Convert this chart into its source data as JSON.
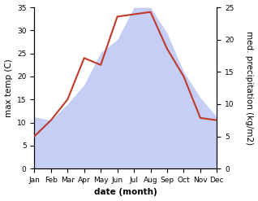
{
  "months": [
    "Jan",
    "Feb",
    "Mar",
    "Apr",
    "May",
    "Jun",
    "Jul",
    "Aug",
    "Sep",
    "Oct",
    "Nov",
    "Dec"
  ],
  "max_temp": [
    7,
    10.5,
    15,
    24,
    22.5,
    33,
    33.5,
    34,
    26,
    20,
    11,
    10.5
  ],
  "precipitation": [
    8,
    7.5,
    10,
    13,
    18,
    20,
    25,
    25,
    21,
    15,
    11,
    8
  ],
  "temp_color": "#c0392b",
  "precip_fill_color": "#c5cff5",
  "temp_ylim": [
    0,
    35
  ],
  "precip_ylim": [
    0,
    25
  ],
  "temp_yticks": [
    0,
    5,
    10,
    15,
    20,
    25,
    30,
    35
  ],
  "precip_yticks": [
    0,
    5,
    10,
    15,
    20,
    25
  ],
  "xlabel": "date (month)",
  "ylabel_left": "max temp (C)",
  "ylabel_right": "med. precipitation (kg/m2)",
  "axis_label_fontsize": 7.5,
  "tick_fontsize": 6.5
}
